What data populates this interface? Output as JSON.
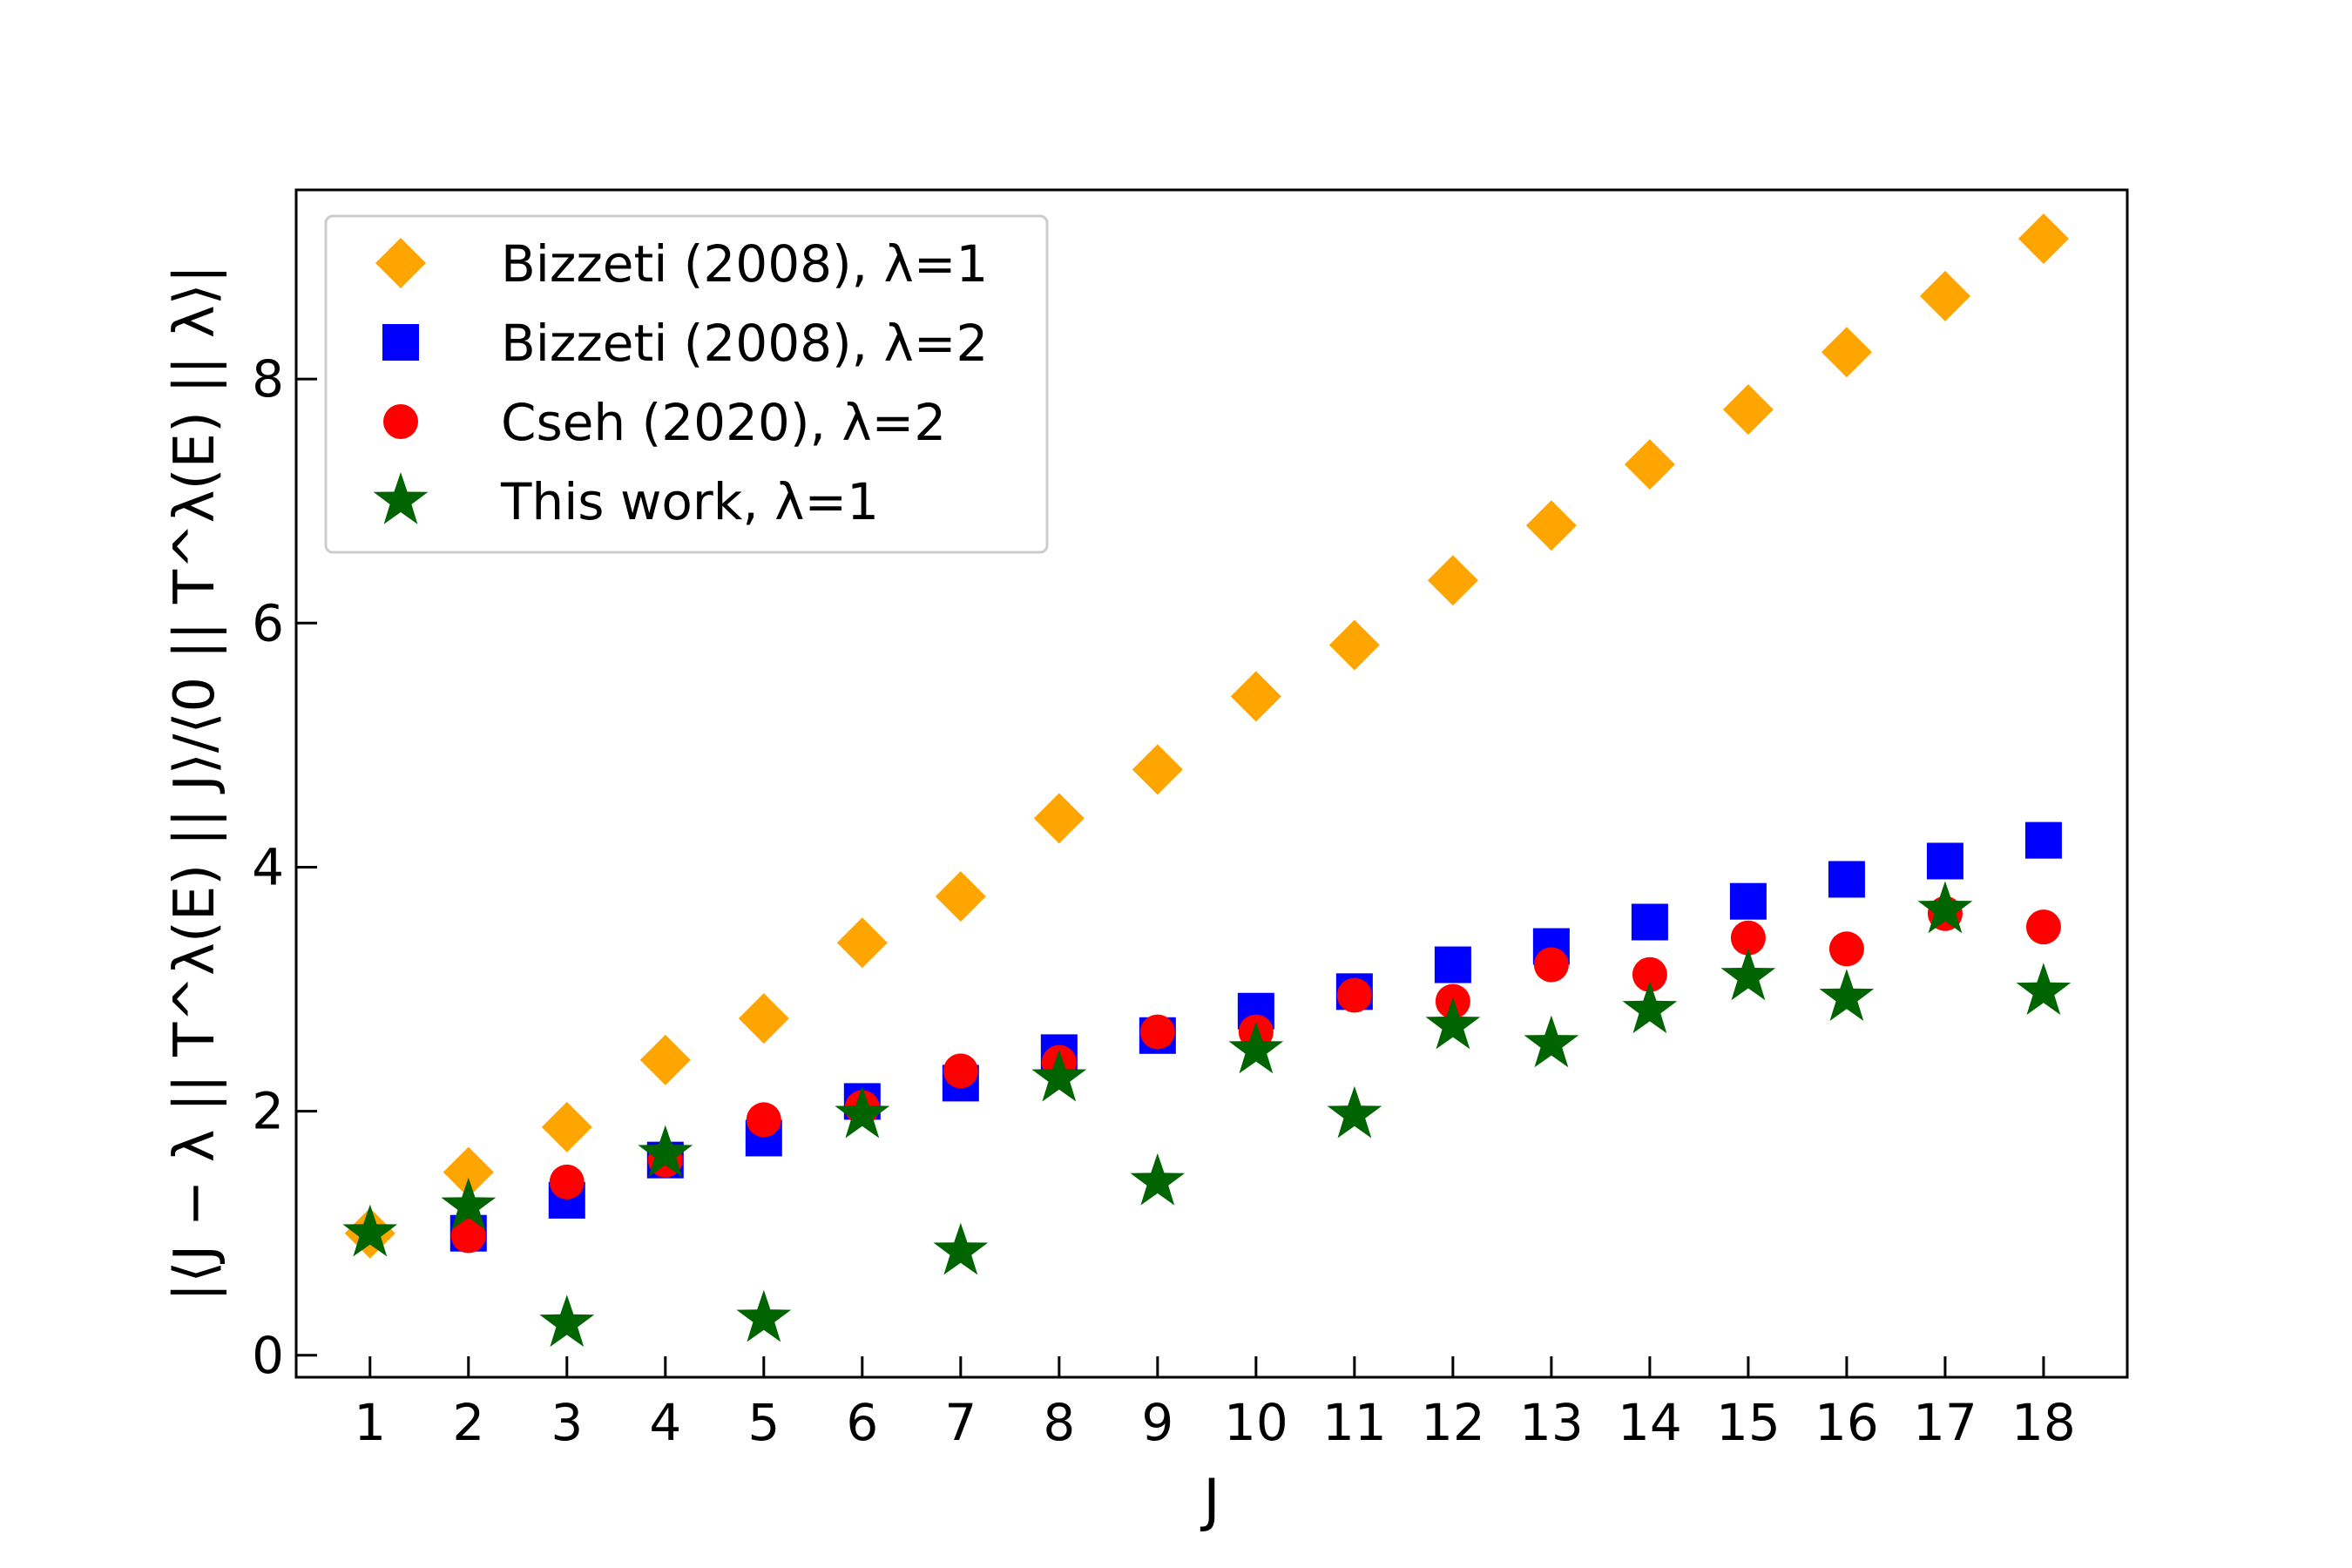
{
  "chart_data": {
    "type": "scatter",
    "xlabel": "J",
    "ylabel": "|⟨J − λ || T^λ(E) || J⟩/⟨0 || T^λ(E) || λ⟩|",
    "xlim": [
      0.25,
      18.85
    ],
    "ylim": [
      -0.18,
      9.55
    ],
    "xticks": [
      1,
      2,
      3,
      4,
      5,
      6,
      7,
      8,
      9,
      10,
      11,
      12,
      13,
      14,
      15,
      16,
      17,
      18
    ],
    "yticks": [
      0,
      2,
      4,
      6,
      8
    ],
    "grid": false,
    "legend_position": "top-left",
    "series": [
      {
        "name": "Bizzeti (2008), λ=1",
        "marker": "diamond",
        "color": "#ffa500",
        "x": [
          1,
          2,
          3,
          4,
          5,
          6,
          7,
          8,
          9,
          10,
          11,
          12,
          13,
          14,
          15,
          16,
          17,
          18
        ],
        "y": [
          1.0,
          1.5,
          1.87,
          2.42,
          2.76,
          3.38,
          3.76,
          4.4,
          4.8,
          5.4,
          5.82,
          6.35,
          6.8,
          7.3,
          7.75,
          8.22,
          8.68,
          9.15
        ]
      },
      {
        "name": "Bizzeti (2008), λ=2",
        "marker": "square",
        "color": "#0000ff",
        "x": [
          2,
          3,
          4,
          5,
          6,
          7,
          8,
          9,
          10,
          11,
          12,
          13,
          14,
          15,
          16,
          17,
          18
        ],
        "y": [
          1.0,
          1.27,
          1.6,
          1.78,
          2.08,
          2.23,
          2.48,
          2.62,
          2.82,
          2.98,
          3.2,
          3.35,
          3.55,
          3.72,
          3.9,
          4.05,
          4.22
        ]
      },
      {
        "name": "Cseh (2020), λ=2",
        "marker": "circle",
        "color": "#ff0000",
        "x": [
          2,
          3,
          4,
          5,
          6,
          7,
          8,
          9,
          10,
          11,
          12,
          13,
          14,
          15,
          16,
          17,
          18
        ],
        "y": [
          0.98,
          1.42,
          1.6,
          1.93,
          2.03,
          2.33,
          2.4,
          2.65,
          2.65,
          2.95,
          2.9,
          3.2,
          3.12,
          3.42,
          3.33,
          3.62,
          3.51
        ]
      },
      {
        "name": "This work, λ=1",
        "marker": "star",
        "color": "#006400",
        "x": [
          1,
          2,
          3,
          4,
          5,
          6,
          7,
          8,
          9,
          10,
          11,
          12,
          13,
          14,
          15,
          16,
          17,
          18
        ],
        "y": [
          1.0,
          1.22,
          0.26,
          1.65,
          0.3,
          1.97,
          0.85,
          2.27,
          1.42,
          2.5,
          1.97,
          2.7,
          2.55,
          2.83,
          3.1,
          2.93,
          3.65,
          2.98
        ]
      }
    ]
  }
}
